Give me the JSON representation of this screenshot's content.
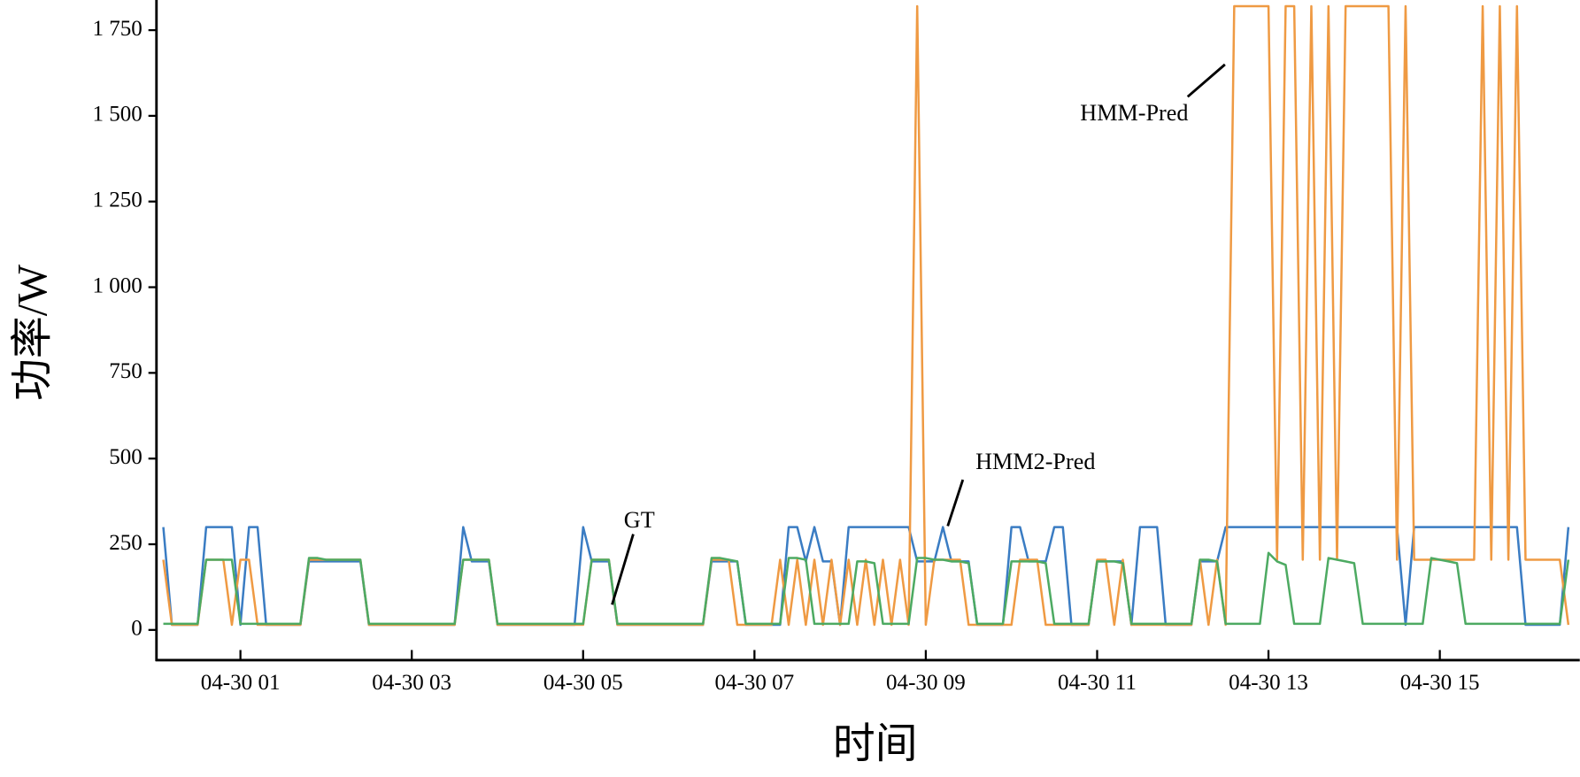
{
  "chart_data": {
    "type": "line",
    "xlabel": "时间",
    "ylabel": "功率/W",
    "xlim": [
      0.02,
      16.61
    ],
    "ylim": [
      -88,
      1838
    ],
    "xticks": [
      {
        "value": 1,
        "label": "04-30 01"
      },
      {
        "value": 3,
        "label": "04-30 03"
      },
      {
        "value": 5,
        "label": "04-30 05"
      },
      {
        "value": 7,
        "label": "04-30 07"
      },
      {
        "value": 9,
        "label": "04-30 09"
      },
      {
        "value": 11,
        "label": "04-30 11"
      },
      {
        "value": 13,
        "label": "04-30 13"
      },
      {
        "value": 15,
        "label": "04-30 15"
      }
    ],
    "yticks": [
      0,
      250,
      500,
      750,
      {
        "value": 1000,
        "label": "1 000"
      },
      {
        "value": 1250,
        "label": "1 250"
      },
      {
        "value": 1500,
        "label": "1 500"
      },
      {
        "value": 1750,
        "label": "1 750"
      }
    ],
    "x": [
      0.1,
      0.2,
      0.3,
      0.4,
      0.5,
      0.6,
      0.7,
      0.8,
      0.9,
      1.0,
      1.1,
      1.2,
      1.3,
      1.4,
      1.5,
      1.6,
      1.7,
      1.8,
      1.9,
      2.0,
      2.1,
      2.2,
      2.3,
      2.4,
      2.5,
      2.6,
      2.7,
      2.8,
      2.9,
      3.0,
      3.1,
      3.2,
      3.3,
      3.4,
      3.5,
      3.6,
      3.7,
      3.8,
      3.9,
      4.0,
      4.1,
      4.2,
      4.3,
      4.4,
      4.5,
      4.6,
      4.7,
      4.8,
      4.9,
      5.0,
      5.1,
      5.2,
      5.3,
      5.4,
      5.5,
      5.6,
      5.7,
      5.8,
      5.9,
      6.0,
      6.1,
      6.2,
      6.3,
      6.4,
      6.5,
      6.6,
      6.7,
      6.8,
      6.9,
      7.0,
      7.1,
      7.2,
      7.3,
      7.4,
      7.5,
      7.6,
      7.7,
      7.8,
      7.9,
      8.0,
      8.1,
      8.2,
      8.3,
      8.4,
      8.5,
      8.6,
      8.7,
      8.8,
      8.9,
      9.0,
      9.1,
      9.2,
      9.3,
      9.4,
      9.5,
      9.6,
      9.7,
      9.8,
      9.9,
      10.0,
      10.1,
      10.2,
      10.3,
      10.4,
      10.5,
      10.6,
      10.7,
      10.8,
      10.9,
      11.0,
      11.1,
      11.2,
      11.3,
      11.4,
      11.5,
      11.6,
      11.7,
      11.8,
      11.9,
      12.0,
      12.1,
      12.2,
      12.3,
      12.4,
      12.5,
      12.6,
      12.7,
      12.8,
      12.9,
      13.0,
      13.1,
      13.2,
      13.3,
      13.4,
      13.5,
      13.6,
      13.7,
      13.8,
      13.9,
      14.0,
      14.1,
      14.2,
      14.3,
      14.4,
      14.5,
      14.6,
      14.7,
      14.8,
      14.9,
      15.0,
      15.1,
      15.2,
      15.3,
      15.4,
      15.5,
      15.6,
      15.7,
      15.8,
      15.9,
      16.0,
      16.1,
      16.2,
      16.3,
      16.4,
      16.5
    ],
    "series": [
      {
        "name": "GT",
        "color": "#3a7cc3",
        "values": [
          300,
          15,
          15,
          15,
          15,
          300,
          300,
          300,
          300,
          15,
          300,
          300,
          15,
          15,
          15,
          15,
          15,
          200,
          200,
          200,
          200,
          200,
          200,
          200,
          15,
          15,
          15,
          15,
          15,
          15,
          15,
          15,
          15,
          15,
          15,
          300,
          200,
          200,
          200,
          15,
          15,
          15,
          15,
          15,
          15,
          15,
          15,
          15,
          15,
          300,
          200,
          200,
          200,
          15,
          15,
          15,
          15,
          15,
          15,
          15,
          15,
          15,
          15,
          15,
          200,
          200,
          200,
          200,
          15,
          15,
          15,
          15,
          15,
          300,
          300,
          200,
          300,
          200,
          200,
          15,
          300,
          300,
          300,
          300,
          300,
          300,
          300,
          300,
          200,
          200,
          200,
          300,
          200,
          200,
          200,
          15,
          15,
          15,
          15,
          300,
          300,
          200,
          200,
          200,
          300,
          300,
          15,
          15,
          15,
          200,
          200,
          200,
          200,
          15,
          300,
          300,
          300,
          15,
          15,
          15,
          15,
          200,
          200,
          200,
          300,
          300,
          300,
          300,
          300,
          300,
          300,
          300,
          300,
          300,
          300,
          300,
          300,
          300,
          300,
          300,
          300,
          300,
          300,
          300,
          300,
          15,
          300,
          300,
          300,
          300,
          300,
          300,
          300,
          300,
          300,
          300,
          300,
          300,
          300,
          15,
          15,
          15,
          15,
          15,
          300
        ]
      },
      {
        "name": "HMM-Pred",
        "color": "#ef9a43",
        "values": [
          205,
          15,
          15,
          15,
          15,
          205,
          205,
          205,
          15,
          205,
          205,
          15,
          15,
          15,
          15,
          15,
          15,
          205,
          205,
          205,
          205,
          205,
          205,
          205,
          15,
          15,
          15,
          15,
          15,
          15,
          15,
          15,
          15,
          15,
          15,
          205,
          205,
          205,
          205,
          15,
          15,
          15,
          15,
          15,
          15,
          15,
          15,
          15,
          15,
          15,
          205,
          205,
          205,
          15,
          15,
          15,
          15,
          15,
          15,
          15,
          15,
          15,
          15,
          15,
          205,
          205,
          205,
          15,
          15,
          15,
          15,
          15,
          205,
          15,
          205,
          15,
          205,
          15,
          205,
          15,
          205,
          15,
          205,
          15,
          205,
          15,
          205,
          15,
          1820,
          15,
          205,
          205,
          205,
          205,
          15,
          15,
          15,
          15,
          15,
          15,
          205,
          205,
          205,
          15,
          15,
          15,
          15,
          15,
          15,
          205,
          205,
          15,
          205,
          15,
          15,
          15,
          15,
          15,
          15,
          15,
          15,
          205,
          15,
          205,
          15,
          1820,
          1820,
          1820,
          1820,
          1820,
          205,
          1820,
          1820,
          205,
          1820,
          205,
          1820,
          205,
          1820,
          1820,
          1820,
          1820,
          1820,
          1820,
          205,
          1820,
          205,
          205,
          205,
          205,
          205,
          205,
          205,
          205,
          1820,
          205,
          1820,
          205,
          1820,
          205,
          205,
          205,
          205,
          205,
          15
        ]
      },
      {
        "name": "HMM2-Pred",
        "color": "#4daa62",
        "values": [
          18,
          18,
          18,
          18,
          18,
          205,
          205,
          205,
          205,
          18,
          18,
          18,
          18,
          18,
          18,
          18,
          18,
          210,
          210,
          205,
          205,
          205,
          205,
          205,
          18,
          18,
          18,
          18,
          18,
          18,
          18,
          18,
          18,
          18,
          18,
          205,
          205,
          205,
          205,
          18,
          18,
          18,
          18,
          18,
          18,
          18,
          18,
          18,
          18,
          18,
          205,
          205,
          205,
          18,
          18,
          18,
          18,
          18,
          18,
          18,
          18,
          18,
          18,
          18,
          210,
          210,
          205,
          200,
          18,
          18,
          18,
          18,
          18,
          210,
          210,
          205,
          18,
          18,
          18,
          18,
          18,
          200,
          200,
          195,
          18,
          18,
          18,
          18,
          210,
          210,
          205,
          205,
          200,
          200,
          195,
          18,
          18,
          18,
          18,
          200,
          200,
          200,
          200,
          195,
          18,
          18,
          18,
          18,
          18,
          200,
          200,
          200,
          195,
          18,
          18,
          18,
          18,
          18,
          18,
          18,
          18,
          205,
          205,
          200,
          18,
          18,
          18,
          18,
          18,
          225,
          200,
          190,
          18,
          18,
          18,
          18,
          210,
          205,
          200,
          195,
          18,
          18,
          18,
          18,
          18,
          18,
          18,
          18,
          210,
          205,
          200,
          195,
          18,
          18,
          18,
          18,
          18,
          18,
          18,
          18,
          18,
          18,
          18,
          18,
          205
        ]
      }
    ]
  }
}
